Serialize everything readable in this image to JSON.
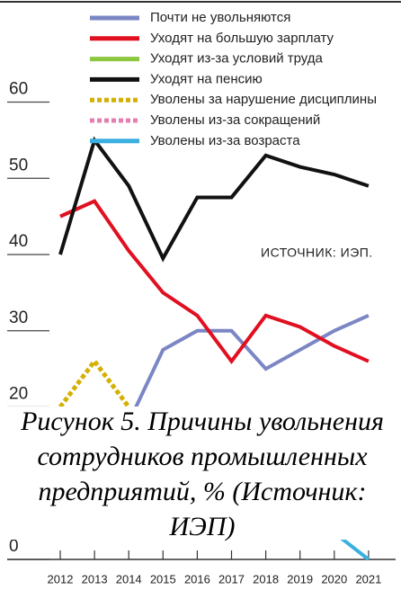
{
  "chart_data": {
    "type": "line",
    "categories": [
      "2012",
      "2013",
      "2014",
      "2015",
      "2016",
      "2017",
      "2018",
      "2019",
      "2020",
      "2021"
    ],
    "series": [
      {
        "name": "Почти не увольняются",
        "color": "#7b86c4",
        "dash": false,
        "values": [
          null,
          null,
          18,
          27.5,
          30,
          30,
          25,
          27.5,
          30,
          32
        ]
      },
      {
        "name": "Уходят на большую зарплату",
        "color": "#e01020",
        "dash": false,
        "values": [
          45,
          47,
          40.5,
          35,
          32,
          26,
          32,
          30.5,
          28,
          26
        ]
      },
      {
        "name": "Уходят из-за условий труда",
        "color": "#8dc63f",
        "dash": false,
        "values": [
          null,
          null,
          null,
          null,
          null,
          null,
          null,
          null,
          null,
          null
        ]
      },
      {
        "name": "Уходят на пенсию",
        "color": "#111111",
        "dash": false,
        "values": [
          40,
          55,
          49,
          39.5,
          47.5,
          47.5,
          53,
          51.5,
          50.5,
          49
        ]
      },
      {
        "name": "Уволены за нарушение дисциплины",
        "color": "#d4b000",
        "dash": true,
        "values": [
          20,
          26,
          20,
          null,
          null,
          null,
          null,
          null,
          null,
          20
        ]
      },
      {
        "name": "Уволены из-за сокращений",
        "color": "#e57fb0",
        "dash": true,
        "values": [
          null,
          null,
          null,
          null,
          null,
          null,
          null,
          null,
          null,
          null
        ]
      },
      {
        "name": "Уволены из-за возраста",
        "color": "#3ab0e0",
        "dash": false,
        "values": [
          null,
          null,
          null,
          null,
          null,
          null,
          null,
          null,
          3.5,
          0
        ]
      }
    ],
    "ylim": [
      0,
      70
    ],
    "yticks": [
      0,
      20,
      30,
      40,
      50,
      60
    ],
    "annotation": "ИСТОЧНИК: ИЭП.",
    "caption": [
      "Рисунок 5. Причины увольнения",
      "сотрудников промышленных",
      "предприятий, % (Источник:",
      "ИЭП)"
    ]
  }
}
